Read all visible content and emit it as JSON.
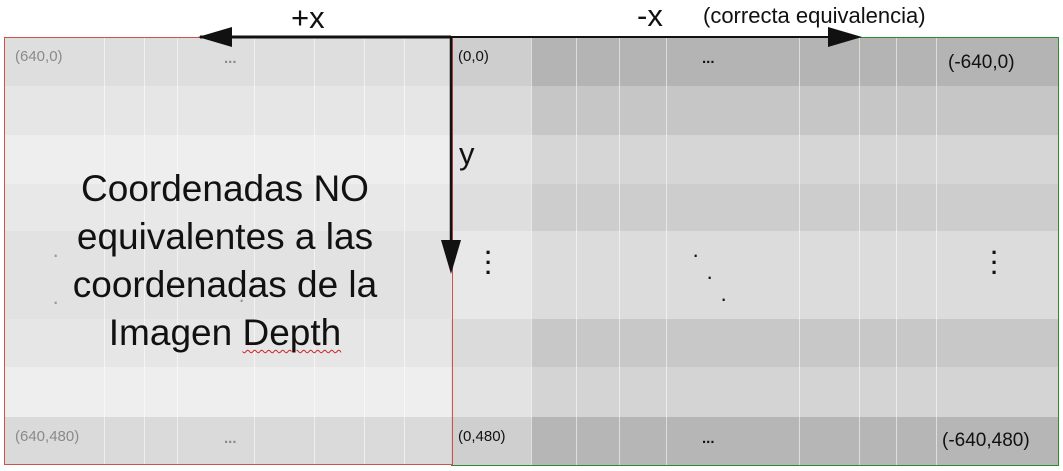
{
  "axes": {
    "plus_x": "+x",
    "minus_x": "-x",
    "minus_x_note": "(correcta equivalencia)",
    "y": "y"
  },
  "left_panel": {
    "top_left": "(640,0)",
    "top_mid": "...",
    "bottom_left": "(640,480)",
    "bottom_mid": "...",
    "message_line1": "Coordenadas NO",
    "message_line2": "equivalentes a las",
    "message_line3": "coordenadas de la",
    "message_line4_a": "Imagen ",
    "message_line4_b": "Depth",
    "border_color": "#d05050"
  },
  "right_panel": {
    "top_left": "(0,0)",
    "top_mid": "...",
    "top_right": "(-640,0)",
    "bottom_left": "(0,480)",
    "bottom_mid": "...",
    "bottom_right": "(-640,480)",
    "border_color": "#2e8b2e"
  },
  "colors": {
    "arrow": "#111111",
    "right_arrow_line": "#2e8b2e",
    "left_arrow_line": "#d05050"
  }
}
